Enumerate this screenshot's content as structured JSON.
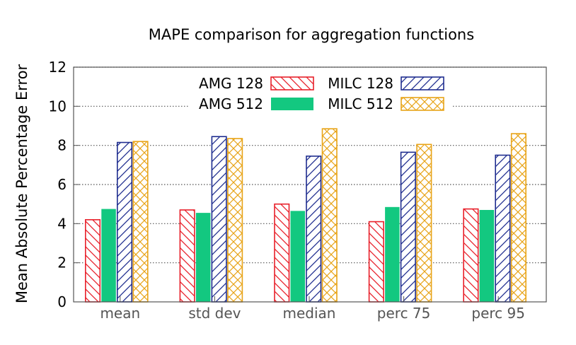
{
  "chart_data": {
    "type": "bar",
    "title": "MAPE comparison for aggregation functions",
    "ylabel": "Mean Absolute Percentage Error",
    "xlabel": "",
    "ylim": [
      0,
      12
    ],
    "yticks": [
      0,
      2,
      4,
      6,
      8,
      10,
      12
    ],
    "grid": "horizontal dotted",
    "legend_position": "top",
    "categories": [
      "mean",
      "std dev",
      "median",
      "perc 75",
      "perc 95"
    ],
    "series": [
      {
        "name": "AMG 128",
        "values": [
          4.2,
          4.7,
          5.0,
          4.1,
          4.75
        ],
        "color": "#e8202a",
        "fill": "back-diagonal-hatch"
      },
      {
        "name": "AMG 512",
        "values": [
          4.75,
          4.55,
          4.65,
          4.85,
          4.7
        ],
        "color": "#13c880",
        "fill": "solid"
      },
      {
        "name": "MILC 128",
        "values": [
          8.15,
          8.45,
          7.45,
          7.65,
          7.5
        ],
        "color": "#1f2d8f",
        "fill": "forward-diagonal-hatch"
      },
      {
        "name": "MILC 512",
        "values": [
          8.2,
          8.35,
          8.85,
          8.05,
          8.6
        ],
        "color": "#e8a418",
        "fill": "cross-hatch"
      }
    ]
  }
}
